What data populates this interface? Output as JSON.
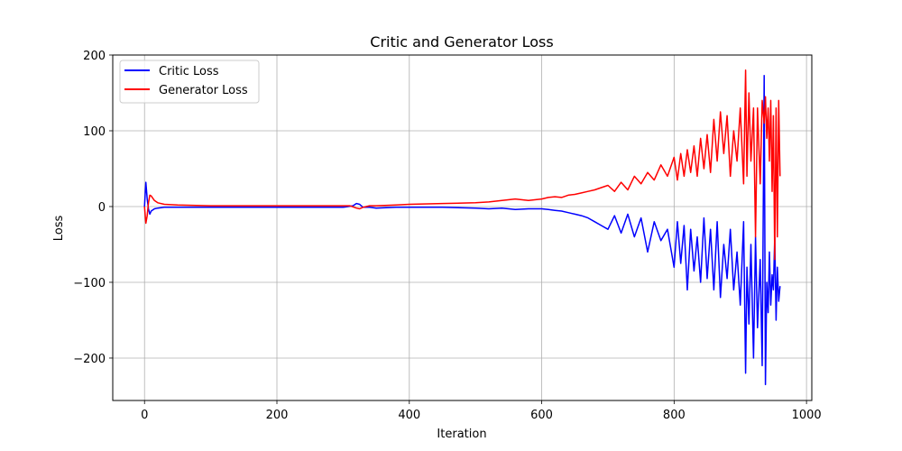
{
  "chart_data": {
    "type": "line",
    "title": "Critic and Generator Loss",
    "xlabel": "Iteration",
    "ylabel": "Loss",
    "xlim": [
      -48,
      1008
    ],
    "ylim": [
      -256,
      200
    ],
    "xticks": [
      0,
      200,
      400,
      600,
      800,
      1000
    ],
    "xtick_labels": [
      "0",
      "200",
      "400",
      "600",
      "800",
      "1000"
    ],
    "yticks": [
      -200,
      -100,
      0,
      100,
      200
    ],
    "ytick_labels": [
      "−200",
      "−100",
      "0",
      "100",
      "200"
    ],
    "grid": true,
    "legend_position": "top-left",
    "series": [
      {
        "name": "Critic Loss",
        "color": "#0000ff",
        "x": [
          0,
          2,
          4,
          6,
          8,
          10,
          15,
          20,
          30,
          50,
          100,
          200,
          300,
          315,
          320,
          325,
          330,
          340,
          350,
          380,
          400,
          450,
          500,
          520,
          540,
          560,
          580,
          600,
          610,
          620,
          630,
          640,
          650,
          660,
          670,
          680,
          690,
          700,
          710,
          720,
          730,
          740,
          750,
          760,
          770,
          780,
          790,
          800,
          805,
          810,
          815,
          820,
          825,
          830,
          835,
          840,
          845,
          850,
          855,
          860,
          865,
          870,
          875,
          880,
          885,
          890,
          895,
          900,
          905,
          908,
          910,
          913,
          916,
          920,
          923,
          926,
          930,
          933,
          936,
          938,
          940,
          942,
          944,
          946,
          948,
          950,
          952,
          954,
          956,
          958,
          960
        ],
        "y": [
          0,
          32,
          10,
          -3,
          -10,
          -6,
          -3,
          -2,
          -1,
          -1,
          -1,
          -1,
          -1,
          1,
          4,
          3,
          -1,
          -1,
          -2,
          -1,
          -1,
          -1,
          -2,
          -3,
          -2,
          -4,
          -3,
          -3,
          -4,
          -5,
          -6,
          -8,
          -10,
          -12,
          -15,
          -20,
          -25,
          -30,
          -12,
          -35,
          -10,
          -40,
          -15,
          -60,
          -20,
          -45,
          -30,
          -80,
          -20,
          -75,
          -25,
          -110,
          -30,
          -85,
          -40,
          -100,
          -15,
          -95,
          -30,
          -110,
          -20,
          -120,
          -50,
          -95,
          -30,
          -110,
          -60,
          -130,
          -20,
          -220,
          -80,
          -155,
          -50,
          -200,
          -40,
          -160,
          -70,
          -210,
          173,
          -235,
          -100,
          -140,
          -60,
          -130,
          -90,
          -110,
          -40,
          -150,
          -80,
          -125,
          -105
        ]
      },
      {
        "name": "Generator Loss",
        "color": "#ff0000",
        "x": [
          0,
          2,
          4,
          6,
          8,
          10,
          15,
          20,
          30,
          50,
          100,
          200,
          300,
          310,
          320,
          325,
          330,
          340,
          350,
          380,
          400,
          450,
          500,
          520,
          540,
          560,
          580,
          600,
          610,
          620,
          630,
          640,
          650,
          660,
          670,
          680,
          690,
          700,
          710,
          720,
          730,
          740,
          750,
          760,
          770,
          780,
          790,
          800,
          805,
          810,
          815,
          820,
          825,
          830,
          835,
          840,
          845,
          850,
          855,
          860,
          865,
          870,
          875,
          880,
          885,
          890,
          895,
          900,
          905,
          908,
          910,
          913,
          916,
          920,
          923,
          926,
          930,
          933,
          936,
          938,
          940,
          942,
          944,
          946,
          948,
          950,
          952,
          954,
          956,
          958,
          960
        ],
        "y": [
          0,
          -22,
          -12,
          5,
          15,
          14,
          8,
          5,
          3,
          2,
          1,
          1,
          1,
          1,
          -2,
          -3,
          -1,
          1,
          1,
          2,
          3,
          4,
          5,
          6,
          8,
          10,
          8,
          10,
          12,
          13,
          12,
          15,
          16,
          18,
          20,
          22,
          25,
          28,
          20,
          32,
          22,
          40,
          30,
          45,
          35,
          55,
          40,
          65,
          35,
          70,
          40,
          75,
          45,
          80,
          40,
          90,
          50,
          95,
          45,
          115,
          60,
          125,
          70,
          120,
          40,
          100,
          60,
          130,
          30,
          180,
          40,
          150,
          60,
          130,
          -40,
          130,
          30,
          140,
          110,
          145,
          90,
          130,
          60,
          140,
          20,
          120,
          -70,
          130,
          -40,
          140,
          40
        ]
      }
    ]
  }
}
